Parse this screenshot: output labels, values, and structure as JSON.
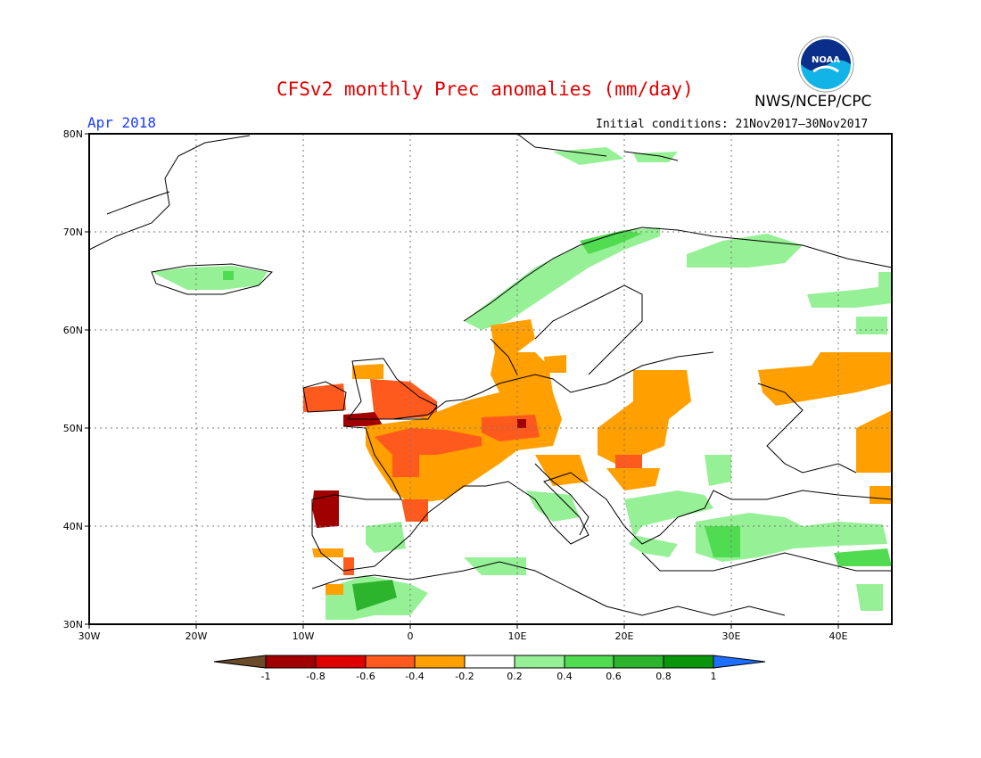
{
  "header": {
    "title": "CFSv2 monthly Prec anomalies (mm/day)",
    "agency": "NWS/NCEP/CPC",
    "month": "Apr 2018",
    "initial_conditions": "Initial conditions: 21Nov2017–30Nov2017",
    "logo_text": "NOAA"
  },
  "map": {
    "lat_labels": [
      "80N",
      "70N",
      "60N",
      "50N",
      "40N",
      "30N"
    ],
    "lon_labels": [
      "30W",
      "20W",
      "10W",
      "0",
      "10E",
      "20E",
      "30E",
      "40E"
    ],
    "lat_range": [
      30,
      80
    ],
    "lon_range": [
      -30,
      45
    ],
    "grid": "dotted"
  },
  "legend": {
    "tick_labels": [
      "-1",
      "-0.8",
      "-0.6",
      "-0.4",
      "-0.2",
      "0.2",
      "0.4",
      "0.6",
      "0.8",
      "1"
    ],
    "colors": [
      "#6b4a2a",
      "#a00000",
      "#e00000",
      "#ff5a1e",
      "#ff9f00",
      "#ffffff",
      "#96f096",
      "#50dc50",
      "#2db42d",
      "#0a960a",
      "#1e6eff"
    ]
  },
  "anomaly_regions": [
    {
      "region": "Ireland",
      "class": "-0.4 to -0.6"
    },
    {
      "region": "Southern England / English Channel",
      "class": "-0.6 to -1"
    },
    {
      "region": "France",
      "class": "-0.2 to -0.6"
    },
    {
      "region": "Central Europe",
      "class": "-0.2 to -0.6"
    },
    {
      "region": "Portugal",
      "class": "-0.6 to -1"
    },
    {
      "region": "Southern Scandinavia",
      "class": "-0.2 to -0.4"
    },
    {
      "region": "Western Russia",
      "class": "-0.2 to -0.4"
    },
    {
      "region": "Norway coast",
      "class": "0.2 to 0.6"
    },
    {
      "region": "Iceland",
      "class": "0.2 to 0.6"
    },
    {
      "region": "Northern Morocco",
      "class": "0.2 to 0.8"
    },
    {
      "region": "Greece / Turkey",
      "class": "0.2 to 0.8"
    }
  ]
}
